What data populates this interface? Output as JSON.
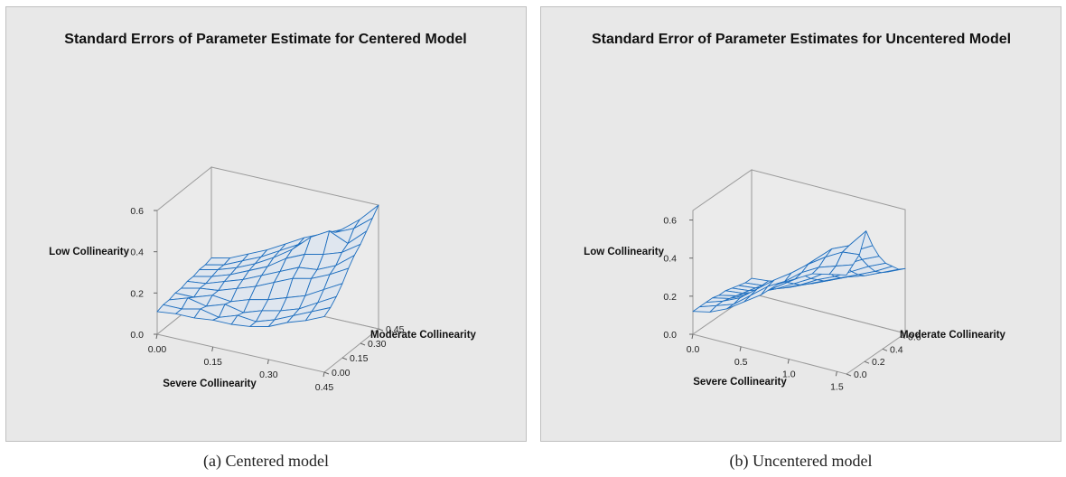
{
  "chart_data": [
    {
      "type": "surface",
      "title": "Standard Errors of Parameter Estimate for Centered Model",
      "caption": "(a) Centered model",
      "xlabel": "Severe Collinearity",
      "ylabel": "Moderate Collinearity",
      "zlabel": "Low Collinearity",
      "x_ticks": [
        "0.00",
        "0.15",
        "0.30",
        "0.45"
      ],
      "y_ticks": [
        "0.00",
        "0.15",
        "0.30",
        "0.45"
      ],
      "z_ticks": [
        "0.0",
        "0.2",
        "0.4",
        "0.6"
      ],
      "xlim": [
        0,
        0.45
      ],
      "ylim": [
        0,
        0.45
      ],
      "zlim": [
        0,
        0.6
      ],
      "surface_color": "#1f6fbf",
      "grid_n": 10,
      "z": [
        [
          0.11,
          0.12,
          0.12,
          0.13,
          0.13,
          0.14,
          0.16,
          0.2,
          0.23,
          0.27
        ],
        [
          0.12,
          0.12,
          0.14,
          0.12,
          0.15,
          0.14,
          0.17,
          0.21,
          0.25,
          0.29
        ],
        [
          0.12,
          0.15,
          0.13,
          0.16,
          0.14,
          0.17,
          0.19,
          0.22,
          0.27,
          0.32
        ],
        [
          0.13,
          0.13,
          0.16,
          0.15,
          0.18,
          0.2,
          0.23,
          0.26,
          0.31,
          0.36
        ],
        [
          0.13,
          0.15,
          0.16,
          0.19,
          0.22,
          0.26,
          0.3,
          0.32,
          0.36,
          0.41
        ],
        [
          0.14,
          0.15,
          0.18,
          0.21,
          0.25,
          0.29,
          0.33,
          0.34,
          0.38,
          0.45
        ],
        [
          0.14,
          0.16,
          0.19,
          0.23,
          0.27,
          0.33,
          0.37,
          0.39,
          0.42,
          0.48
        ],
        [
          0.15,
          0.17,
          0.2,
          0.24,
          0.29,
          0.35,
          0.43,
          0.48,
          0.44,
          0.52
        ],
        [
          0.15,
          0.17,
          0.21,
          0.25,
          0.3,
          0.35,
          0.41,
          0.45,
          0.49,
          0.56
        ],
        [
          0.16,
          0.18,
          0.22,
          0.26,
          0.31,
          0.36,
          0.4,
          0.44,
          0.51,
          0.6
        ]
      ]
    },
    {
      "type": "surface",
      "title": "Standard Error of Parameter Estimates for Uncentered Model",
      "caption": "(b) Uncentered model",
      "xlabel": "Severe Collinearity",
      "ylabel": "Moderate Collinearity",
      "zlabel": "Low Collinearity",
      "x_ticks": [
        "0.0",
        "0.5",
        "1.0",
        "1.5"
      ],
      "y_ticks": [
        "0.0",
        "0.2",
        "0.4",
        "0.6"
      ],
      "z_ticks": [
        "0.0",
        "0.2",
        "0.4",
        "0.6"
      ],
      "xlim": [
        0,
        1.6
      ],
      "ylim": [
        0,
        0.65
      ],
      "zlim": [
        0,
        0.65
      ],
      "surface_color": "#1f6fbf",
      "grid_n": 10,
      "z": [
        [
          0.12,
          0.14,
          0.18,
          0.24,
          0.3,
          0.38,
          0.43,
          0.48,
          0.5,
          0.52
        ],
        [
          0.12,
          0.15,
          0.18,
          0.25,
          0.32,
          0.37,
          0.44,
          0.49,
          0.52,
          0.55
        ],
        [
          0.12,
          0.15,
          0.19,
          0.26,
          0.33,
          0.39,
          0.46,
          0.52,
          0.57,
          0.58
        ],
        [
          0.12,
          0.14,
          0.18,
          0.24,
          0.3,
          0.38,
          0.46,
          0.54,
          0.58,
          0.68
        ],
        [
          0.11,
          0.13,
          0.17,
          0.21,
          0.27,
          0.33,
          0.4,
          0.48,
          0.53,
          0.58
        ],
        [
          0.11,
          0.12,
          0.15,
          0.19,
          0.24,
          0.29,
          0.35,
          0.41,
          0.46,
          0.5
        ],
        [
          0.1,
          0.11,
          0.14,
          0.17,
          0.21,
          0.26,
          0.3,
          0.35,
          0.4,
          0.44
        ],
        [
          0.09,
          0.1,
          0.13,
          0.15,
          0.19,
          0.23,
          0.27,
          0.31,
          0.35,
          0.4
        ],
        [
          0.08,
          0.09,
          0.11,
          0.14,
          0.17,
          0.21,
          0.25,
          0.28,
          0.32,
          0.36
        ],
        [
          0.08,
          0.09,
          0.11,
          0.13,
          0.16,
          0.2,
          0.24,
          0.27,
          0.3,
          0.34
        ]
      ]
    }
  ]
}
